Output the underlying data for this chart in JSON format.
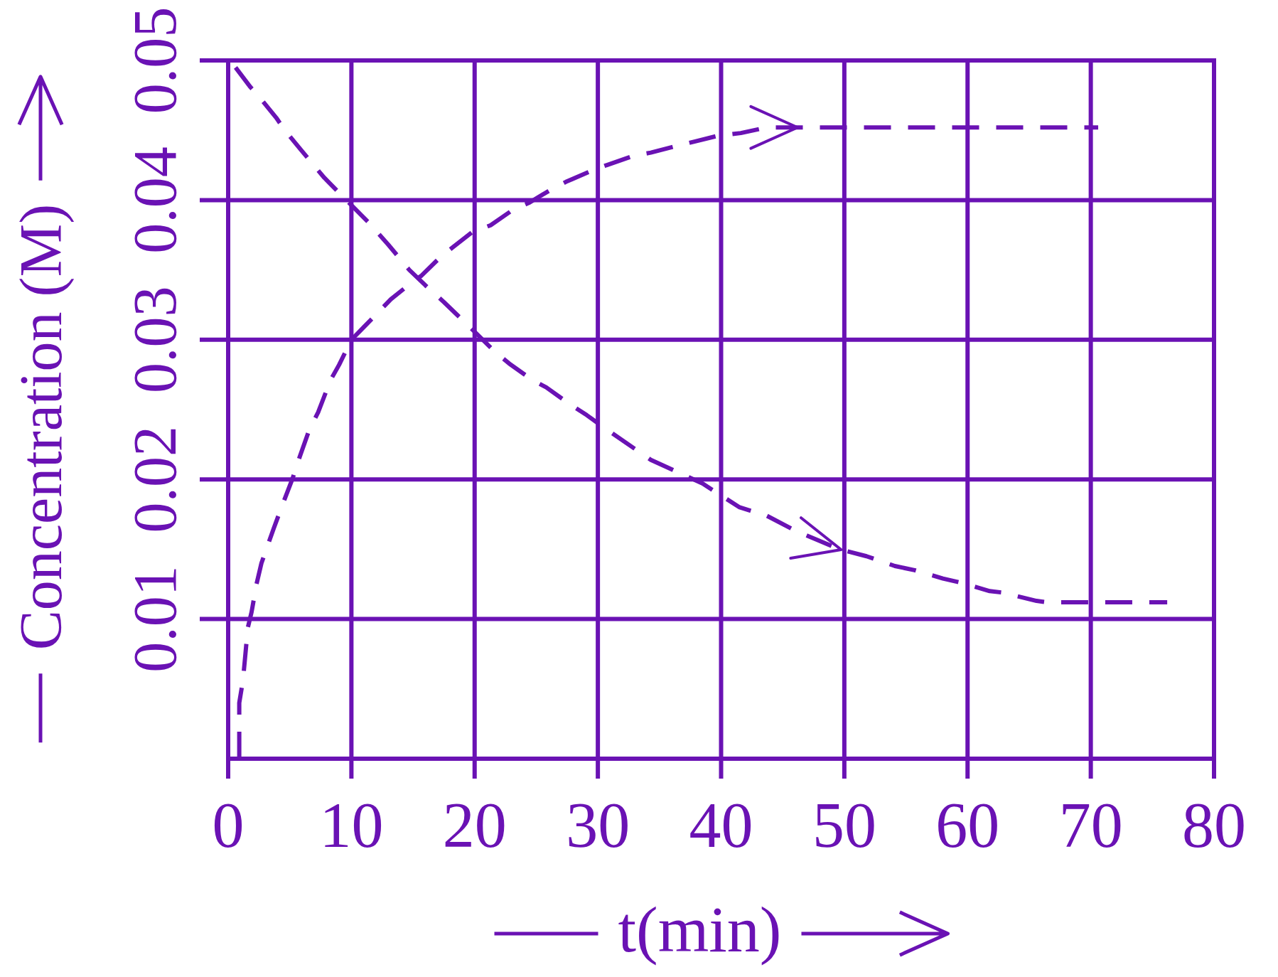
{
  "chart_data": {
    "type": "line",
    "xlabel": "t(min)",
    "ylabel": "Concentration (M)",
    "xlim": [
      0,
      80
    ],
    "xticks": [
      0,
      10,
      20,
      30,
      40,
      50,
      60,
      70,
      80
    ],
    "ylim": [
      0,
      0.05
    ],
    "yticks": [
      0.01,
      0.02,
      0.03,
      0.04,
      0.05
    ],
    "grid": true,
    "line_style": "dashed",
    "series": [
      {
        "color": "#6a12b4",
        "x": [
          0.6,
          1.8,
          2.7,
          3.9,
          4.6,
          5.9,
          7.8,
          9.7,
          11.4,
          13.0,
          14.7,
          16.0,
          17.5,
          19.5,
          21.7,
          22.8,
          24.7,
          25.8,
          27.7,
          29.1,
          31.0,
          34.3,
          38.5,
          41.5,
          43.7,
          46.1,
          49.6,
          51.8,
          54.1,
          55.7,
          58.0,
          59.5,
          61.8,
          62.8,
          65.6,
          66.5,
          76.2
        ],
        "values": [
          0.0495,
          0.0481,
          0.0472,
          0.0459,
          0.045,
          0.0436,
          0.0416,
          0.0399,
          0.0384,
          0.0368,
          0.035,
          0.0339,
          0.0327,
          0.031,
          0.0291,
          0.0283,
          0.0271,
          0.0266,
          0.0254,
          0.0246,
          0.0234,
          0.0214,
          0.0197,
          0.018,
          0.0174,
          0.0163,
          0.015,
          0.0145,
          0.0138,
          0.0135,
          0.0129,
          0.0126,
          0.012,
          0.0119,
          0.0113,
          0.0112,
          0.0112
        ]
      },
      {
        "color": "#6a12b4",
        "x": [
          0.9,
          0.9,
          1.2,
          1.4,
          1.6,
          1.9,
          2.3,
          2.7,
          3.7,
          4.5,
          5.2,
          5.8,
          6.6,
          7.3,
          8.3,
          9.0,
          10.0,
          12.0,
          13.2,
          14.9,
          15.7,
          17.2,
          18.2,
          19.8,
          21.3,
          23.1,
          24.4,
          26.1,
          27.4,
          29.5,
          30.7,
          33.0,
          34.3,
          36.5,
          37.9,
          39.7,
          41.6,
          43.7,
          46.0,
          70.6
        ],
        "values": [
          0,
          0.004,
          0.0056,
          0.0075,
          0.0094,
          0.0105,
          0.0125,
          0.014,
          0.0165,
          0.0184,
          0.02,
          0.0216,
          0.0236,
          0.0248,
          0.0271,
          0.0282,
          0.03,
          0.0318,
          0.0329,
          0.0341,
          0.0346,
          0.0359,
          0.0366,
          0.0377,
          0.0382,
          0.0393,
          0.0398,
          0.0407,
          0.0413,
          0.0421,
          0.0425,
          0.0432,
          0.0434,
          0.0439,
          0.0442,
          0.0446,
          0.0448,
          0.0452,
          0.0452,
          0.0452
        ]
      }
    ]
  }
}
